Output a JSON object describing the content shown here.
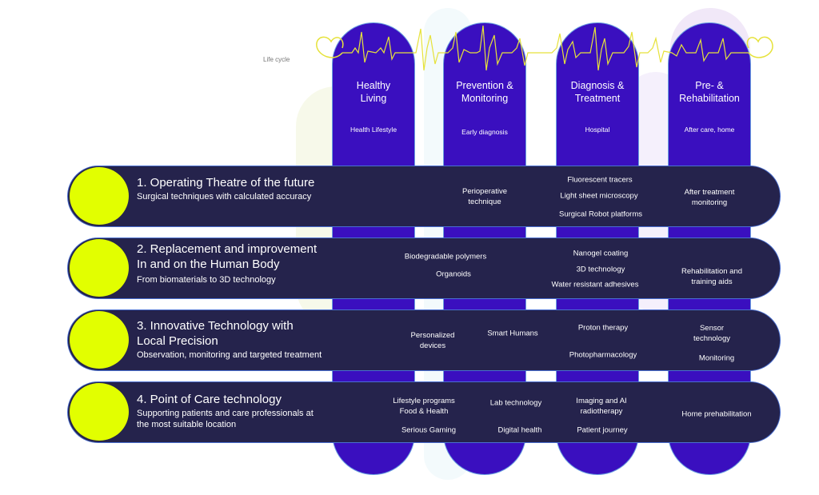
{
  "lifecycle_label": "Life cycle",
  "colors": {
    "column": "#3a0fbf",
    "row": "#25234c",
    "dot": "#e2ff00",
    "heartbeat": "#e6e23a"
  },
  "columns": [
    {
      "title": "Healthy\nLiving",
      "subtitle": "Health Lifestyle"
    },
    {
      "title": "Prevention &\nMonitoring",
      "subtitle": "Early diagnosis"
    },
    {
      "title": "Diagnosis &\nTreatment",
      "subtitle": "Hospital"
    },
    {
      "title": "Pre- &\nRehabilitation",
      "subtitle": "After care, home"
    }
  ],
  "rows": [
    {
      "title": "1. Operating Theatre of the future",
      "subtitle": "Surgical techniques with calculated accuracy",
      "items": [
        "Perioperative\ntechnique",
        "Fluorescent tracers",
        "Light sheet microscopy",
        "Surgical Robot platforms",
        "After treatment\nmonitoring"
      ]
    },
    {
      "title": "2. Replacement and improvement\nIn and on  the Human Body",
      "subtitle": "From biomaterials to 3D technology",
      "items": [
        "Biodegradable polymers",
        "Organoids",
        "Nanogel coating",
        "3D technology",
        "Water resistant adhesives",
        "Rehabilitation and\ntraining aids"
      ]
    },
    {
      "title": "3. Innovative Technology with\nLocal Precision",
      "subtitle": "Observation, monitoring and targeted treatment",
      "items": [
        "Personalized\ndevices",
        "Smart Humans",
        "Proton therapy",
        "Photopharmacology",
        "Sensor\ntechnology",
        "Monitoring"
      ]
    },
    {
      "title": "4. Point of Care technology",
      "subtitle": "Supporting patients and care professionals at\nthe most suitable location",
      "items": [
        "Lifestyle programs\nFood & Health",
        "Lab technology",
        "Imaging and AI\nradiotherapy",
        "Serious Gaming",
        "Digital health",
        "Patient  journey",
        "Home prehabilitation"
      ]
    }
  ]
}
